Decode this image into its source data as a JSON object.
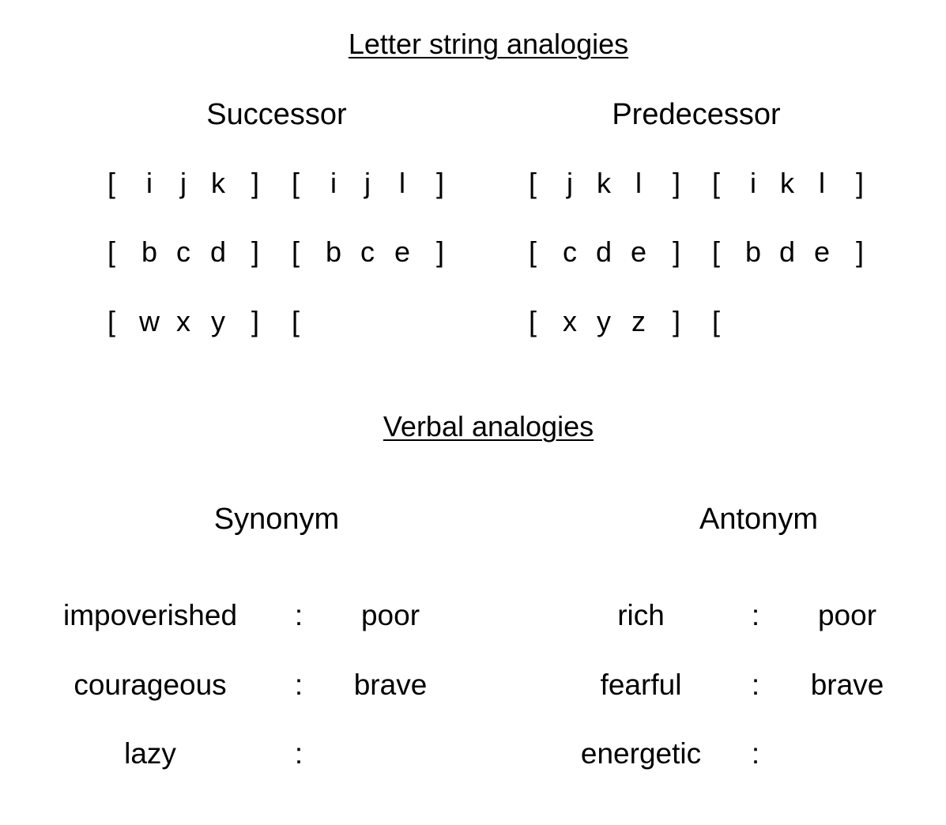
{
  "letter_string": {
    "title": "Letter string analogies",
    "successor": {
      "heading": "Successor",
      "rows": [
        {
          "a": [
            "i",
            "j",
            "k"
          ],
          "b": [
            "i",
            "j",
            "l"
          ]
        },
        {
          "a": [
            "b",
            "c",
            "d"
          ],
          "b": [
            "b",
            "c",
            "e"
          ]
        },
        {
          "a": [
            "w",
            "x",
            "y"
          ],
          "b": []
        }
      ]
    },
    "predecessor": {
      "heading": "Predecessor",
      "rows": [
        {
          "a": [
            "j",
            "k",
            "l"
          ],
          "b": [
            "i",
            "k",
            "l"
          ]
        },
        {
          "a": [
            "c",
            "d",
            "e"
          ],
          "b": [
            "b",
            "d",
            "e"
          ]
        },
        {
          "a": [
            "x",
            "y",
            "z"
          ],
          "b": []
        }
      ]
    },
    "open_bracket": "[",
    "close_bracket": "]"
  },
  "verbal": {
    "title": "Verbal analogies",
    "separator": ":",
    "synonym": {
      "heading": "Synonym",
      "rows": [
        {
          "a": "impoverished",
          "b": "poor"
        },
        {
          "a": "courageous",
          "b": "brave"
        },
        {
          "a": "lazy",
          "b": ""
        }
      ]
    },
    "antonym": {
      "heading": "Antonym",
      "rows": [
        {
          "a": "rich",
          "b": "poor"
        },
        {
          "a": "fearful",
          "b": "brave"
        },
        {
          "a": "energetic",
          "b": ""
        }
      ]
    }
  }
}
